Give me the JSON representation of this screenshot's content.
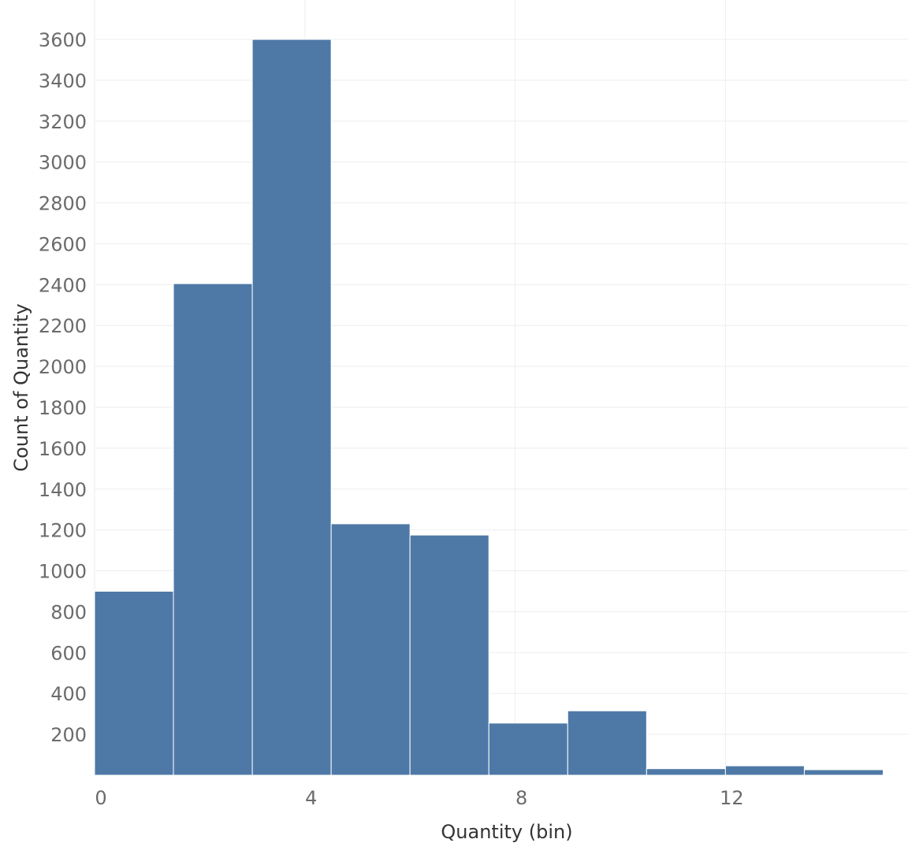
{
  "chart_data": {
    "type": "bar",
    "subtype": "histogram",
    "xlabel": "Quantity (bin)",
    "ylabel": "Count of Quantity",
    "bin_width": 1.5,
    "bins": [
      {
        "start": 0.0,
        "end": 1.5,
        "count": 900
      },
      {
        "start": 1.5,
        "end": 3.0,
        "count": 2405
      },
      {
        "start": 3.0,
        "end": 4.5,
        "count": 3600
      },
      {
        "start": 4.5,
        "end": 6.0,
        "count": 1230
      },
      {
        "start": 6.0,
        "end": 7.5,
        "count": 1175
      },
      {
        "start": 7.5,
        "end": 9.0,
        "count": 255
      },
      {
        "start": 9.0,
        "end": 10.5,
        "count": 315
      },
      {
        "start": 10.5,
        "end": 12.0,
        "count": 32
      },
      {
        "start": 12.0,
        "end": 13.5,
        "count": 46
      },
      {
        "start": 13.5,
        "end": 15.0,
        "count": 27
      }
    ],
    "x_ticks": [
      0,
      4,
      8,
      12
    ],
    "x_tick_labels": [
      "0",
      "4",
      "8",
      "12"
    ],
    "y_ticks": [
      200,
      400,
      600,
      800,
      1000,
      1200,
      1400,
      1600,
      1800,
      2000,
      2200,
      2400,
      2600,
      2800,
      3000,
      3200,
      3400,
      3600
    ],
    "y_tick_labels": [
      "200",
      "400",
      "600",
      "800",
      "1000",
      "1200",
      "1400",
      "1600",
      "1800",
      "2000",
      "2200",
      "2400",
      "2600",
      "2800",
      "3000",
      "3200",
      "3400",
      "3600"
    ],
    "xlim": [
      -0.1,
      15.5
    ],
    "ylim": [
      0,
      3780
    ],
    "grid": true,
    "bar_color": "#4e79a7"
  }
}
